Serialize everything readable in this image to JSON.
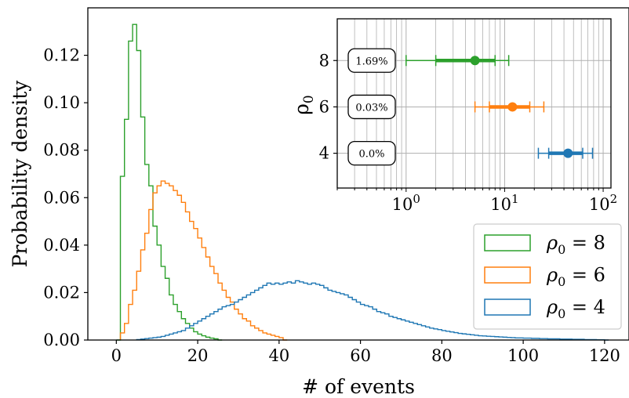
{
  "chart_data": [
    {
      "type": "histogram",
      "xlabel": "# of events",
      "ylabel": "Probability density",
      "xlim": [
        -7,
        126
      ],
      "ylim": [
        0,
        0.14
      ],
      "xticks": [
        0,
        20,
        40,
        60,
        80,
        100,
        120
      ],
      "xtick_labels": [
        "0",
        "20",
        "40",
        "60",
        "80",
        "100",
        "120"
      ],
      "yticks": [
        0.0,
        0.02,
        0.04,
        0.06,
        0.08,
        0.1,
        0.12
      ],
      "ytick_labels": [
        "0.00",
        "0.02",
        "0.04",
        "0.06",
        "0.08",
        "0.10",
        "0.12"
      ],
      "grid": false,
      "legend_position": "lower-right",
      "series": [
        {
          "name": "ρ₀ = 8",
          "legend_base": "ρ",
          "legend_sub": "0",
          "legend_rhs": " = 8",
          "color": "#2ca02c",
          "bin_start": 0,
          "bin_width": 1,
          "values": [
            0.0,
            0.069,
            0.093,
            0.126,
            0.133,
            0.122,
            0.094,
            0.074,
            0.065,
            0.048,
            0.04,
            0.031,
            0.026,
            0.019,
            0.015,
            0.012,
            0.009,
            0.007,
            0.005,
            0.0035,
            0.0025,
            0.0018,
            0.0012,
            0.0008,
            0.0005,
            0.0
          ]
        },
        {
          "name": "ρ₀ = 6",
          "legend_base": "ρ",
          "legend_sub": "0",
          "legend_rhs": " = 6",
          "color": "#ff7f0e",
          "bin_start": 1,
          "bin_width": 1,
          "values": [
            0.003,
            0.007,
            0.015,
            0.021,
            0.029,
            0.038,
            0.045,
            0.055,
            0.062,
            0.065,
            0.067,
            0.066,
            0.065,
            0.063,
            0.061,
            0.058,
            0.054,
            0.05,
            0.047,
            0.043,
            0.039,
            0.035,
            0.031,
            0.028,
            0.024,
            0.021,
            0.018,
            0.016,
            0.013,
            0.011,
            0.009,
            0.008,
            0.006,
            0.005,
            0.004,
            0.003,
            0.0025,
            0.002,
            0.0015,
            0.001,
            0.0
          ]
        },
        {
          "name": "ρ₀ = 4",
          "legend_base": "ρ",
          "legend_sub": "0",
          "legend_rhs": " = 4",
          "color": "#1f77b4",
          "bin_start": 5,
          "bin_width": 1,
          "values": [
            0.0002,
            0.0004,
            0.0006,
            0.0008,
            0.001,
            0.0012,
            0.0015,
            0.002,
            0.0025,
            0.003,
            0.0035,
            0.004,
            0.005,
            0.006,
            0.007,
            0.008,
            0.009,
            0.01,
            0.011,
            0.012,
            0.013,
            0.014,
            0.0145,
            0.015,
            0.016,
            0.017,
            0.018,
            0.019,
            0.02,
            0.021,
            0.022,
            0.023,
            0.024,
            0.0235,
            0.024,
            0.0235,
            0.024,
            0.0245,
            0.024,
            0.025,
            0.0245,
            0.024,
            0.0235,
            0.024,
            0.0235,
            0.023,
            0.022,
            0.021,
            0.0205,
            0.02,
            0.0195,
            0.019,
            0.018,
            0.017,
            0.016,
            0.015,
            0.0145,
            0.014,
            0.013,
            0.012,
            0.0115,
            0.011,
            0.01,
            0.0095,
            0.009,
            0.0085,
            0.008,
            0.0075,
            0.007,
            0.0065,
            0.006,
            0.0055,
            0.005,
            0.0047,
            0.0044,
            0.004,
            0.0037,
            0.0034,
            0.0031,
            0.0028,
            0.0026,
            0.0024,
            0.0022,
            0.002,
            0.0018,
            0.0017,
            0.0016,
            0.0015,
            0.0014,
            0.0013,
            0.0012,
            0.0011,
            0.001,
            0.0009,
            0.0009,
            0.0008,
            0.0008,
            0.0007,
            0.0007,
            0.0006,
            0.0006,
            0.0005,
            0.0005,
            0.0005,
            0.0004,
            0.0004,
            0.0004,
            0.0003,
            0.0003,
            0.0003,
            0.0002,
            0.0002,
            0.0002,
            0.0001,
            0.0001,
            0.0
          ]
        }
      ]
    },
    {
      "type": "errorbar",
      "ylabel_base": "ρ",
      "ylabel_sub": "0",
      "xscale": "log",
      "xlim": [
        0.2,
        120
      ],
      "ylim": [
        2.5,
        9.8
      ],
      "xticks": [
        1,
        10,
        100
      ],
      "xtick_exponents": [
        "0",
        "1",
        "2"
      ],
      "xtick_base": "10",
      "yticks": [
        4,
        6,
        8
      ],
      "ytick_labels": [
        "4",
        "6",
        "8"
      ],
      "grid": true,
      "points": [
        {
          "rho0": 8,
          "color": "#2ca02c",
          "center": 5.0,
          "inner": [
            2.0,
            8.0
          ],
          "outer": [
            1.0,
            11.0
          ],
          "badge": "1.69%"
        },
        {
          "rho0": 6,
          "color": "#ff7f0e",
          "center": 12.0,
          "inner": [
            7.0,
            18.0
          ],
          "outer": [
            5.0,
            25.0
          ],
          "badge": "0.03%"
        },
        {
          "rho0": 4,
          "color": "#1f77b4",
          "center": 44.0,
          "inner": [
            28.0,
            62.0
          ],
          "outer": [
            22.0,
            78.0
          ],
          "badge": "0.0%"
        }
      ]
    }
  ]
}
